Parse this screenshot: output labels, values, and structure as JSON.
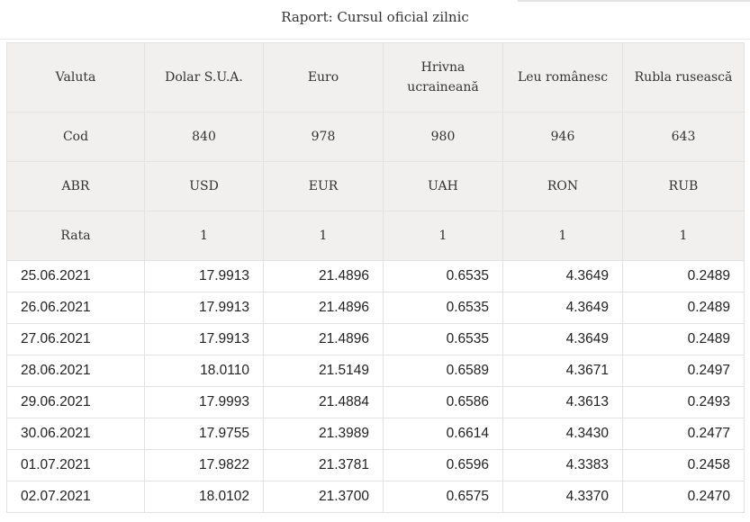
{
  "report": {
    "title": "Raport: Cursul oficial zilnic"
  },
  "header_rows": [
    {
      "label": "Valuta",
      "values": [
        "Dolar S.U.A.",
        "Euro",
        "Hrivna ucraineană",
        "Leu românesc",
        "Rubla rusească"
      ]
    },
    {
      "label": "Cod",
      "values": [
        "840",
        "978",
        "980",
        "946",
        "643"
      ]
    },
    {
      "label": "ABR",
      "values": [
        "USD",
        "EUR",
        "UAH",
        "RON",
        "RUB"
      ]
    },
    {
      "label": "Rata",
      "values": [
        "1",
        "1",
        "1",
        "1",
        "1"
      ]
    }
  ],
  "rows": [
    {
      "date": "25.06.2021",
      "values": [
        "17.9913",
        "21.4896",
        "0.6535",
        "4.3649",
        "0.2489"
      ]
    },
    {
      "date": "26.06.2021",
      "values": [
        "17.9913",
        "21.4896",
        "0.6535",
        "4.3649",
        "0.2489"
      ]
    },
    {
      "date": "27.06.2021",
      "values": [
        "17.9913",
        "21.4896",
        "0.6535",
        "4.3649",
        "0.2489"
      ]
    },
    {
      "date": "28.06.2021",
      "values": [
        "18.0110",
        "21.5149",
        "0.6589",
        "4.3671",
        "0.2497"
      ]
    },
    {
      "date": "29.06.2021",
      "values": [
        "17.9993",
        "21.4884",
        "0.6586",
        "4.3613",
        "0.2493"
      ]
    },
    {
      "date": "30.06.2021",
      "values": [
        "17.9755",
        "21.3989",
        "0.6614",
        "4.3430",
        "0.2477"
      ]
    },
    {
      "date": "01.07.2021",
      "values": [
        "17.9822",
        "21.3781",
        "0.6596",
        "4.3383",
        "0.2458"
      ]
    },
    {
      "date": "02.07.2021",
      "values": [
        "18.0102",
        "21.3700",
        "0.6575",
        "4.3370",
        "0.2470"
      ]
    }
  ],
  "colors": {
    "header_background": "#f1f0ef",
    "border": "#e2e2e2",
    "text": "#222222"
  }
}
